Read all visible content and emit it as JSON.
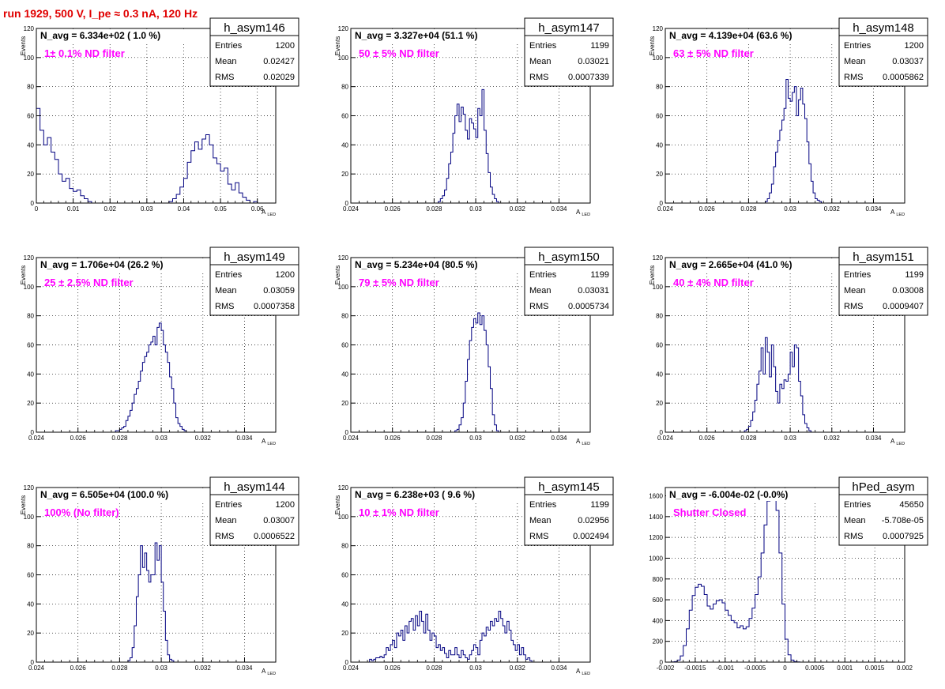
{
  "page_title": "run 1929,   500 V, I_pe ≈ 0.3 nA, 120 Hz",
  "colors": {
    "title": "#e00000",
    "histogram_line": "#000080",
    "annotation": "#ff00ff",
    "frame": "#000000"
  },
  "stat_labels": {
    "entries": "Entries",
    "mean": "Mean",
    "rms": "RMS"
  },
  "chart_data": [
    {
      "type": "histogram",
      "name": "h_asym146",
      "navg": "N_avg = 6.334e+02 ( 1.0 %)",
      "note": "1± 0.1% ND filter",
      "stats": {
        "entries": "1200",
        "mean": "0.02427",
        "rms": "0.02029"
      },
      "ylabel": "Events",
      "xlabel": "A",
      "xlabel_sub": "LED",
      "xlim": [
        0,
        0.065
      ],
      "ylim": [
        0,
        120
      ],
      "grid": true,
      "xticks": [
        0,
        0.01,
        0.02,
        0.03,
        0.04,
        0.05,
        0.06
      ],
      "xticklabels": [
        "0",
        "0.01",
        "0.02",
        "0.03",
        "0.04",
        "0.05",
        "0.06"
      ],
      "yticks": [
        0,
        20,
        40,
        60,
        80,
        100,
        120
      ],
      "yticklabels": [
        "0",
        "20",
        "40",
        "60",
        "80",
        "100",
        "120"
      ],
      "bin_lo": 0,
      "bin_width": 0.001,
      "counts": [
        65,
        50,
        40,
        45,
        35,
        30,
        20,
        15,
        17,
        10,
        8,
        9,
        5,
        3,
        1,
        0,
        0,
        0,
        0,
        0,
        0,
        0,
        0,
        0,
        0,
        0,
        0,
        0,
        0,
        0,
        0,
        0,
        0,
        0,
        0,
        0,
        1,
        3,
        6,
        11,
        17,
        28,
        36,
        42,
        37,
        44,
        47,
        40,
        31,
        27,
        22,
        24,
        13,
        9,
        14,
        7,
        4,
        2,
        0,
        1,
        0,
        0,
        0,
        0,
        0
      ]
    },
    {
      "type": "histogram",
      "name": "h_asym147",
      "navg": "N_avg = 3.327e+04 (51.1 %)",
      "note": "50 ± 5% ND filter",
      "stats": {
        "entries": "1199",
        "mean": "0.03021",
        "rms": "0.0007339"
      },
      "ylabel": "Events",
      "xlabel": "A",
      "xlabel_sub": "LED",
      "xlim": [
        0.024,
        0.0355
      ],
      "ylim": [
        0,
        120
      ],
      "grid": true,
      "xticks": [
        0.024,
        0.026,
        0.028,
        0.03,
        0.032,
        0.034
      ],
      "xticklabels": [
        "0.024",
        "0.026",
        "0.028",
        "0.03",
        "0.032",
        "0.034"
      ],
      "yticks": [
        0,
        20,
        40,
        60,
        80,
        100,
        120
      ],
      "yticklabels": [
        "0",
        "20",
        "40",
        "60",
        "80",
        "100",
        "120"
      ],
      "bin_lo": 0.0282,
      "bin_width": 0.0001,
      "counts": [
        1,
        3,
        5,
        9,
        17,
        27,
        35,
        48,
        60,
        68,
        56,
        66,
        61,
        50,
        44,
        58,
        55,
        51,
        45,
        65,
        60,
        78,
        50,
        34,
        21,
        11,
        6,
        3,
        1
      ]
    },
    {
      "type": "histogram",
      "name": "h_asym148",
      "navg": "N_avg = 4.139e+04 (63.6 %)",
      "note": "63 ± 5% ND filter",
      "stats": {
        "entries": "1200",
        "mean": "0.03037",
        "rms": "0.0005862"
      },
      "ylabel": "Events",
      "xlabel": "A",
      "xlabel_sub": "LED",
      "xlim": [
        0.024,
        0.0355
      ],
      "ylim": [
        0,
        120
      ],
      "grid": true,
      "xticks": [
        0.024,
        0.026,
        0.028,
        0.03,
        0.032,
        0.034
      ],
      "xticklabels": [
        "0.024",
        "0.026",
        "0.028",
        "0.03",
        "0.032",
        "0.034"
      ],
      "yticks": [
        0,
        20,
        40,
        60,
        80,
        100,
        120
      ],
      "yticklabels": [
        "0",
        "20",
        "40",
        "60",
        "80",
        "100",
        "120"
      ],
      "bin_lo": 0.0288,
      "bin_width": 0.0001,
      "counts": [
        1,
        3,
        7,
        13,
        25,
        35,
        43,
        50,
        57,
        65,
        85,
        72,
        70,
        76,
        80,
        60,
        71,
        79,
        68,
        58,
        42,
        27,
        15,
        7,
        3,
        2,
        1
      ]
    },
    {
      "type": "histogram",
      "name": "h_asym149",
      "navg": "N_avg = 1.706e+04 (26.2 %)",
      "note": "25 ± 2.5% ND filter",
      "stats": {
        "entries": "1200",
        "mean": "0.03059",
        "rms": "0.0007358"
      },
      "ylabel": "Events",
      "xlabel": "A",
      "xlabel_sub": "LED",
      "xlim": [
        0.024,
        0.0355
      ],
      "ylim": [
        0,
        120
      ],
      "grid": true,
      "xticks": [
        0.024,
        0.026,
        0.028,
        0.03,
        0.032,
        0.034
      ],
      "xticklabels": [
        "0.024",
        "0.026",
        "0.028",
        "0.03",
        "0.032",
        "0.034"
      ],
      "yticks": [
        0,
        20,
        40,
        60,
        80,
        100,
        120
      ],
      "yticklabels": [
        "0",
        "20",
        "40",
        "60",
        "80",
        "100",
        "120"
      ],
      "bin_lo": 0.0278,
      "bin_width": 0.0001,
      "counts": [
        1,
        1,
        2,
        3,
        4,
        8,
        11,
        15,
        20,
        26,
        30,
        35,
        42,
        48,
        52,
        55,
        60,
        62,
        66,
        60,
        72,
        75,
        70,
        60,
        55,
        48,
        38,
        30,
        20,
        10,
        6,
        4,
        2,
        1
      ]
    },
    {
      "type": "histogram",
      "name": "h_asym150",
      "navg": "N_avg = 5.234e+04 (80.5 %)",
      "note": "79 ± 5% ND filter",
      "stats": {
        "entries": "1199",
        "mean": "0.03031",
        "rms": "0.0005734"
      },
      "ylabel": "Events",
      "xlabel": "A",
      "xlabel_sub": "LED",
      "xlim": [
        0.024,
        0.0355
      ],
      "ylim": [
        0,
        120
      ],
      "grid": true,
      "xticks": [
        0.024,
        0.026,
        0.028,
        0.03,
        0.032,
        0.034
      ],
      "xticklabels": [
        "0.024",
        "0.026",
        "0.028",
        "0.03",
        "0.032",
        "0.034"
      ],
      "yticks": [
        0,
        20,
        40,
        60,
        80,
        100,
        120
      ],
      "yticklabels": [
        "0",
        "20",
        "40",
        "60",
        "80",
        "100",
        "120"
      ],
      "bin_lo": 0.029,
      "bin_width": 0.0001,
      "counts": [
        1,
        2,
        5,
        10,
        20,
        35,
        50,
        63,
        72,
        78,
        75,
        82,
        74,
        80,
        70,
        60,
        45,
        30,
        12,
        5,
        1
      ]
    },
    {
      "type": "histogram",
      "name": "h_asym151",
      "navg": "N_avg = 2.665e+04 (41.0 %)",
      "note": "40 ± 4% ND filter",
      "stats": {
        "entries": "1199",
        "mean": "0.03008",
        "rms": "0.0009407"
      },
      "ylabel": "Events",
      "xlabel": "A",
      "xlabel_sub": "LED",
      "xlim": [
        0.024,
        0.0355
      ],
      "ylim": [
        0,
        120
      ],
      "grid": true,
      "xticks": [
        0.024,
        0.026,
        0.028,
        0.03,
        0.032,
        0.034
      ],
      "xticklabels": [
        "0.024",
        "0.026",
        "0.028",
        "0.03",
        "0.032",
        "0.034"
      ],
      "yticks": [
        0,
        20,
        40,
        60,
        80,
        100,
        120
      ],
      "yticklabels": [
        "0",
        "20",
        "40",
        "60",
        "80",
        "100",
        "120"
      ],
      "bin_lo": 0.0278,
      "bin_width": 0.0001,
      "counts": [
        1,
        2,
        4,
        8,
        14,
        22,
        33,
        42,
        58,
        40,
        65,
        55,
        38,
        60,
        45,
        28,
        20,
        33,
        30,
        36,
        35,
        40,
        55,
        45,
        60,
        58,
        35,
        25,
        12,
        6,
        3,
        1
      ]
    },
    {
      "type": "histogram",
      "name": "h_asym144",
      "navg": "N_avg = 6.505e+04 (100.0 %)",
      "note": "100% (No filter)",
      "stats": {
        "entries": "1200",
        "mean": "0.03007",
        "rms": "0.0006522"
      },
      "ylabel": "Events",
      "xlabel": "A",
      "xlabel_sub": "LED",
      "xlim": [
        0.024,
        0.0355
      ],
      "ylim": [
        0,
        120
      ],
      "grid": true,
      "xticks": [
        0.024,
        0.026,
        0.028,
        0.03,
        0.032,
        0.034
      ],
      "xticklabels": [
        "0.024",
        "0.026",
        "0.028",
        "0.03",
        "0.032",
        "0.034"
      ],
      "yticks": [
        0,
        20,
        40,
        60,
        80,
        100,
        120
      ],
      "yticklabels": [
        "0",
        "20",
        "40",
        "60",
        "80",
        "100",
        "120"
      ],
      "bin_lo": 0.0284,
      "bin_width": 0.0001,
      "counts": [
        1,
        3,
        10,
        25,
        45,
        60,
        80,
        65,
        75,
        63,
        55,
        60,
        60,
        82,
        70,
        80,
        55,
        35,
        15,
        5,
        2,
        1
      ]
    },
    {
      "type": "histogram",
      "name": "h_asym145",
      "navg": "N_avg = 6.238e+03 ( 9.6 %)",
      "note": "10 ± 1% ND filter",
      "stats": {
        "entries": "1199",
        "mean": "0.02956",
        "rms": "0.002494"
      },
      "ylabel": "Events",
      "xlabel": "A",
      "xlabel_sub": "LED",
      "xlim": [
        0.024,
        0.0355
      ],
      "ylim": [
        0,
        120
      ],
      "grid": true,
      "xticks": [
        0.024,
        0.026,
        0.028,
        0.03,
        0.032,
        0.034
      ],
      "xticklabels": [
        "0.024",
        "0.026",
        "0.028",
        "0.03",
        "0.032",
        "0.034"
      ],
      "yticks": [
        0,
        20,
        40,
        60,
        80,
        100,
        120
      ],
      "yticklabels": [
        "0",
        "20",
        "40",
        "60",
        "80",
        "100",
        "120"
      ],
      "bin_lo": 0.0249,
      "bin_width": 0.0001,
      "counts": [
        2,
        1,
        2,
        3,
        3,
        4,
        3,
        5,
        10,
        8,
        12,
        15,
        10,
        20,
        18,
        22,
        15,
        25,
        20,
        28,
        30,
        22,
        32,
        25,
        35,
        28,
        20,
        33,
        22,
        15,
        20,
        18,
        10,
        12,
        8,
        10,
        6,
        3,
        8,
        5,
        5,
        10,
        5,
        3,
        8,
        5,
        3,
        2,
        5,
        8,
        12,
        10,
        5,
        15,
        20,
        18,
        24,
        22,
        28,
        25,
        30,
        28,
        35,
        30,
        25,
        20,
        28,
        22,
        15,
        12,
        8,
        12,
        5,
        10,
        5,
        2,
        3,
        1
      ]
    },
    {
      "type": "histogram",
      "name": "hPed_asym",
      "navg": "N_avg = -6.004e-02 (-0.0%)",
      "note": "Shutter Closed",
      "stats": {
        "entries": "45650",
        "mean": "-5.708e-05",
        "rms": "0.0007925"
      },
      "ylabel": "",
      "xlabel": "",
      "xlabel_sub": "",
      "xlim": [
        -0.002,
        0.002
      ],
      "ylim": [
        0,
        1680
      ],
      "grid": true,
      "xticks": [
        -0.002,
        -0.0015,
        -0.001,
        -0.0005,
        0,
        0.0005,
        0.001,
        0.0015,
        0.002
      ],
      "xticklabels": [
        "-0.002",
        "-0.0015",
        "-0.001",
        "-0.0005",
        "0",
        "0.0005",
        "0.001",
        "0.0015",
        "0.002"
      ],
      "yticks": [
        0,
        200,
        400,
        600,
        800,
        1000,
        1200,
        1400,
        1600
      ],
      "yticklabels": [
        "0",
        "200",
        "400",
        "600",
        "800",
        "1000",
        "1200",
        "1400",
        "1600"
      ],
      "bin_lo": -0.002,
      "bin_width": 5e-05,
      "counts": [
        0,
        0,
        2,
        5,
        20,
        60,
        160,
        320,
        500,
        640,
        720,
        750,
        730,
        650,
        540,
        510,
        560,
        590,
        600,
        570,
        500,
        450,
        400,
        380,
        330,
        350,
        320,
        340,
        420,
        520,
        650,
        820,
        1050,
        1320,
        1550,
        1640,
        1620,
        1460,
        1050,
        560,
        220,
        70,
        20,
        5,
        2,
        0,
        0,
        0,
        0,
        0,
        0
      ]
    }
  ]
}
